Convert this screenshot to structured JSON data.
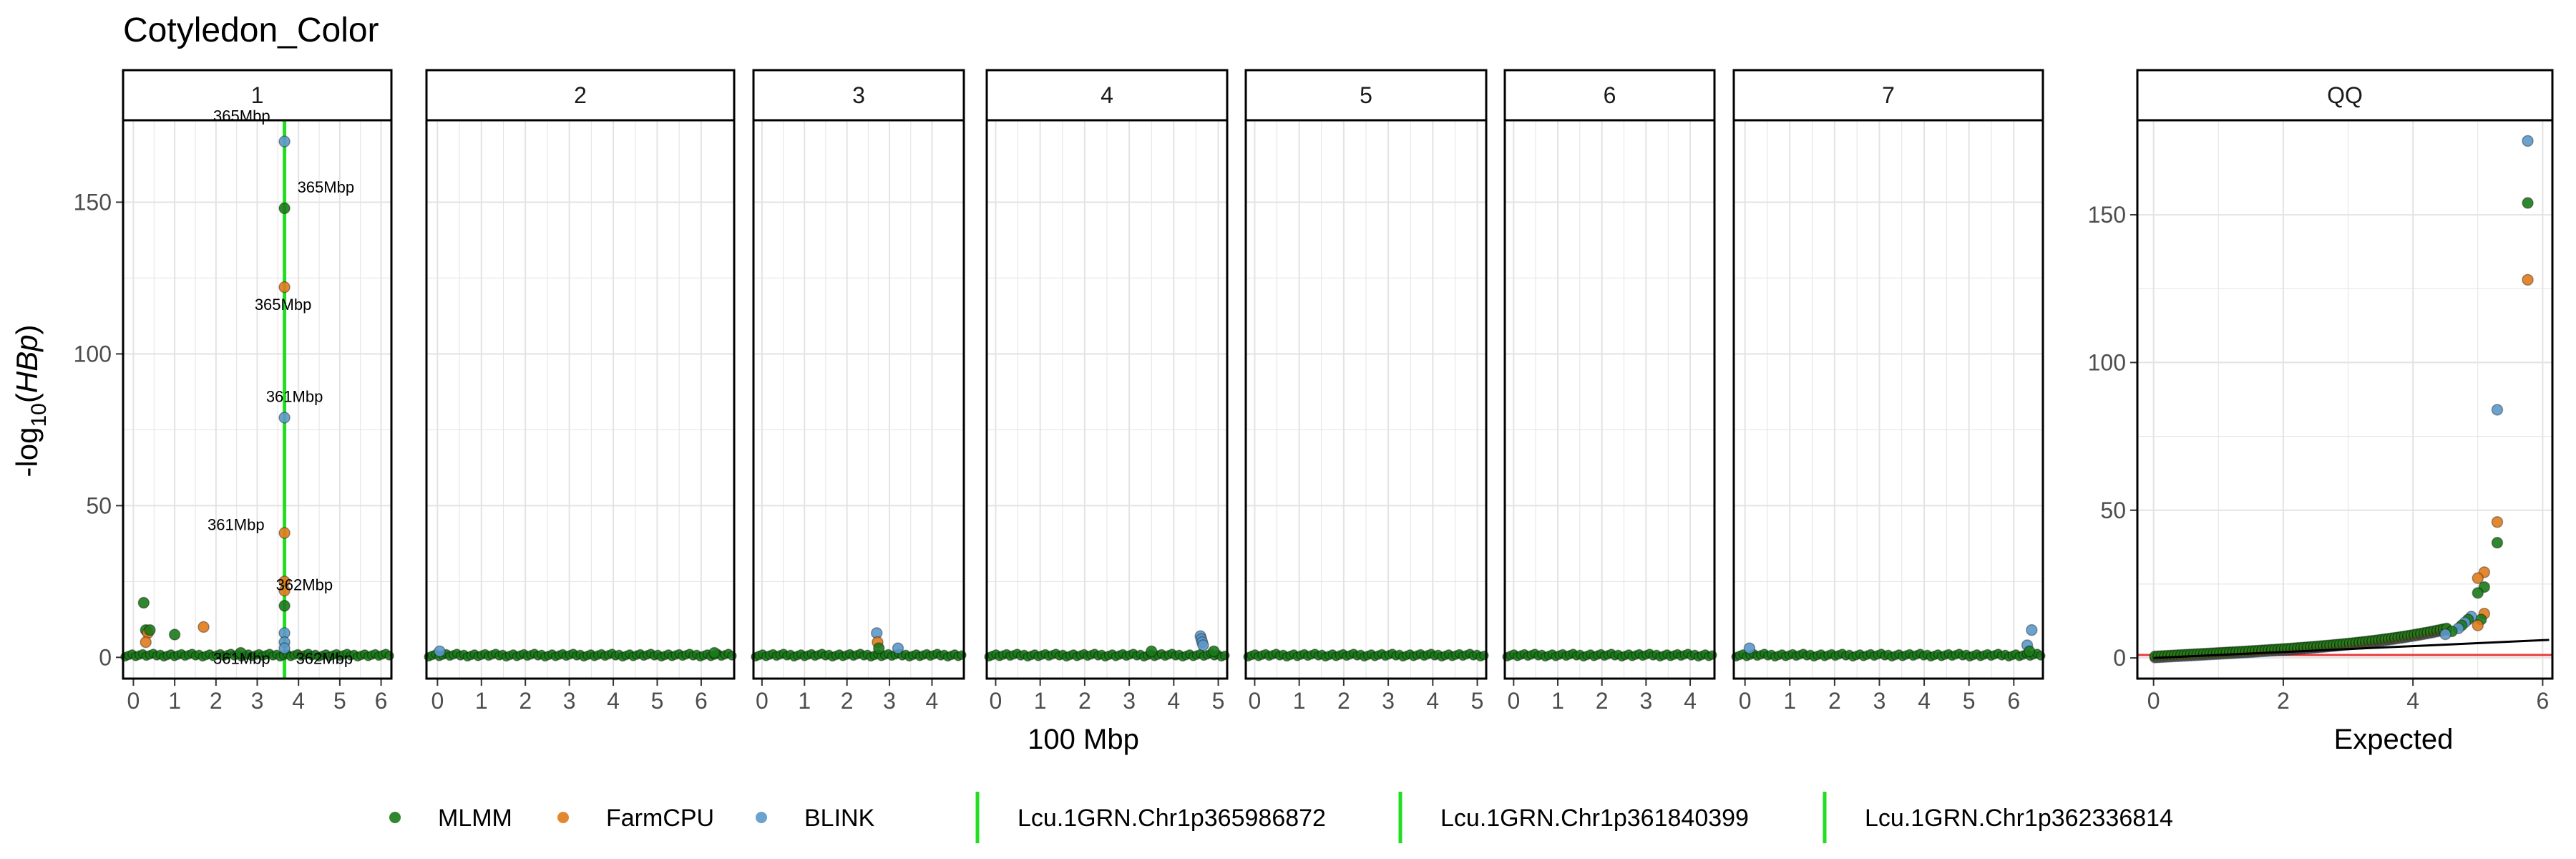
{
  "chart_data": [
    {
      "type": "scatter",
      "title": "Cotyledon_Color",
      "subtitle": "",
      "xlabel": "100 Mbp",
      "ylabel_prefix": "-log",
      "ylabel_sub": "10",
      "ylabel_open": "(",
      "ylabel_var": "HBp",
      "ylabel_close": ")",
      "ylim": [
        -7,
        177
      ],
      "yticks": [
        "0",
        "50",
        "100",
        "150"
      ],
      "threshold_y": 0.8,
      "panels": [
        {
          "label": "1",
          "xlim": [
            -0.25,
            6.25
          ],
          "xticks": [
            "0",
            "1",
            "2",
            "3",
            "4",
            "5",
            "6"
          ],
          "highlight_x": 3.66,
          "points": [
            {
              "x": 0.25,
              "y": 18,
              "s": "MLMM"
            },
            {
              "x": 0.3,
              "y": 9,
              "s": "MLMM"
            },
            {
              "x": 0.35,
              "y": 8,
              "s": "FarmCPU"
            },
            {
              "x": 0.4,
              "y": 9,
              "s": "MLMM"
            },
            {
              "x": 0.3,
              "y": 5,
              "s": "FarmCPU"
            },
            {
              "x": 1.0,
              "y": 7.5,
              "s": "MLMM"
            },
            {
              "x": 1.7,
              "y": 10,
              "s": "FarmCPU"
            },
            {
              "x": 2.6,
              "y": 1.5,
              "s": "MLMM"
            },
            {
              "x": 3.66,
              "y": 170,
              "s": "BLINK"
            },
            {
              "x": 3.66,
              "y": 148,
              "s": "MLMM"
            },
            {
              "x": 3.66,
              "y": 122,
              "s": "FarmCPU"
            },
            {
              "x": 3.66,
              "y": 79,
              "s": "BLINK"
            },
            {
              "x": 3.66,
              "y": 41,
              "s": "FarmCPU"
            },
            {
              "x": 3.66,
              "y": 25,
              "s": "FarmCPU"
            },
            {
              "x": 3.66,
              "y": 22,
              "s": "FarmCPU"
            },
            {
              "x": 3.66,
              "y": 17,
              "s": "MLMM"
            },
            {
              "x": 3.66,
              "y": 8,
              "s": "BLINK"
            },
            {
              "x": 3.66,
              "y": 5,
              "s": "BLINK"
            },
            {
              "x": 3.66,
              "y": 3,
              "s": "BLINK"
            }
          ],
          "labels": [
            {
              "x": 3.66,
              "y": 170,
              "text": "365Mbp",
              "side": "left"
            },
            {
              "x": 3.66,
              "y": 148,
              "text": "365Mbp",
              "side": "right"
            },
            {
              "x": 3.66,
              "y": 122,
              "text": "365Mbp",
              "side": "below"
            },
            {
              "x": 3.66,
              "y": 79,
              "text": "361Mbp",
              "side": "above"
            },
            {
              "x": 3.66,
              "y": 41,
              "text": "361Mbp",
              "side": "belowleft"
            },
            {
              "x": 3.66,
              "y": 17,
              "text": "362Mbp",
              "side": "belowright"
            },
            {
              "x": 3.66,
              "y": 3,
              "text": "361Mbp",
              "side": "lowleft"
            },
            {
              "x": 3.66,
              "y": 3,
              "text": "362Mbp",
              "side": "lowright"
            }
          ]
        },
        {
          "label": "2",
          "xlim": [
            -0.25,
            6.75
          ],
          "xticks": [
            "0",
            "1",
            "2",
            "3",
            "4",
            "5",
            "6"
          ],
          "points": [
            {
              "x": 0.05,
              "y": 2,
              "s": "BLINK"
            },
            {
              "x": 6.3,
              "y": 1.5,
              "s": "MLMM"
            }
          ],
          "labels": []
        },
        {
          "label": "3",
          "xlim": [
            -0.2,
            4.75
          ],
          "xticks": [
            "0",
            "1",
            "2",
            "3",
            "4"
          ],
          "points": [
            {
              "x": 2.7,
              "y": 8,
              "s": "BLINK"
            },
            {
              "x": 2.72,
              "y": 5,
              "s": "FarmCPU"
            },
            {
              "x": 2.75,
              "y": 3,
              "s": "MLMM"
            },
            {
              "x": 3.2,
              "y": 3,
              "s": "BLINK"
            }
          ],
          "labels": []
        },
        {
          "label": "4",
          "xlim": [
            -0.2,
            5.2
          ],
          "xticks": [
            "0",
            "1",
            "2",
            "3",
            "4",
            "5"
          ],
          "points": [
            {
              "x": 4.6,
              "y": 7,
              "s": "BLINK"
            },
            {
              "x": 4.62,
              "y": 6,
              "s": "BLINK"
            },
            {
              "x": 4.64,
              "y": 5,
              "s": "BLINK"
            },
            {
              "x": 4.66,
              "y": 4,
              "s": "BLINK"
            },
            {
              "x": 3.5,
              "y": 2,
              "s": "MLMM"
            },
            {
              "x": 4.9,
              "y": 2,
              "s": "MLMM"
            }
          ],
          "labels": []
        },
        {
          "label": "5",
          "xlim": [
            -0.2,
            5.2
          ],
          "xticks": [
            "0",
            "1",
            "2",
            "3",
            "4",
            "5"
          ],
          "points": [],
          "labels": []
        },
        {
          "label": "6",
          "xlim": [
            -0.2,
            4.55
          ],
          "xticks": [
            "0",
            "1",
            "2",
            "3",
            "4"
          ],
          "points": [],
          "labels": []
        },
        {
          "label": "7",
          "xlim": [
            -0.25,
            6.65
          ],
          "xticks": [
            "0",
            "1",
            "2",
            "3",
            "4",
            "5",
            "6"
          ],
          "points": [
            {
              "x": 0.1,
              "y": 3,
              "s": "BLINK"
            },
            {
              "x": 6.4,
              "y": 9,
              "s": "BLINK"
            },
            {
              "x": 6.3,
              "y": 4,
              "s": "BLINK"
            },
            {
              "x": 6.35,
              "y": 2,
              "s": "MLMM"
            }
          ],
          "labels": []
        }
      ]
    },
    {
      "type": "scatter",
      "title": "QQ",
      "xlabel": "Expected",
      "xlim": [
        -0.25,
        6.15
      ],
      "ylim": [
        -7,
        182
      ],
      "xticks": [
        "0",
        "2",
        "4",
        "6"
      ],
      "yticks": [
        "0",
        "50",
        "100",
        "150"
      ],
      "threshold_y": 1,
      "diagonal": [
        [
          0,
          0
        ],
        [
          6.1,
          6.1
        ]
      ],
      "points": [
        {
          "x": 5.77,
          "y": 175,
          "s": "BLINK"
        },
        {
          "x": 5.77,
          "y": 154,
          "s": "MLMM"
        },
        {
          "x": 5.77,
          "y": 128,
          "s": "FarmCPU"
        },
        {
          "x": 5.3,
          "y": 84,
          "s": "BLINK"
        },
        {
          "x": 5.3,
          "y": 46,
          "s": "FarmCPU"
        },
        {
          "x": 5.3,
          "y": 39,
          "s": "MLMM"
        },
        {
          "x": 5.1,
          "y": 29,
          "s": "FarmCPU"
        },
        {
          "x": 5.0,
          "y": 27,
          "s": "FarmCPU"
        },
        {
          "x": 5.1,
          "y": 24,
          "s": "MLMM"
        },
        {
          "x": 5.0,
          "y": 22,
          "s": "MLMM"
        },
        {
          "x": 5.1,
          "y": 15,
          "s": "FarmCPU"
        },
        {
          "x": 5.05,
          "y": 13,
          "s": "MLMM"
        },
        {
          "x": 5.0,
          "y": 11,
          "s": "FarmCPU"
        },
        {
          "x": 4.9,
          "y": 14,
          "s": "BLINK"
        },
        {
          "x": 4.85,
          "y": 13,
          "s": "MLMM"
        },
        {
          "x": 4.8,
          "y": 12,
          "s": "BLINK"
        },
        {
          "x": 4.75,
          "y": 11,
          "s": "MLMM"
        },
        {
          "x": 4.7,
          "y": 10,
          "s": "BLINK"
        },
        {
          "x": 4.6,
          "y": 9,
          "s": "MLMM"
        },
        {
          "x": 4.5,
          "y": 8,
          "s": "BLINK"
        }
      ]
    }
  ],
  "legend": {
    "series": [
      {
        "name": "MLMM",
        "color": "#1a7a1a"
      },
      {
        "name": "FarmCPU",
        "color": "#e07b1c"
      },
      {
        "name": "BLINK",
        "color": "#5b98c9"
      }
    ],
    "lines": [
      {
        "name": "Lcu.1GRN.Chr1p365986872",
        "color": "#22dd22"
      },
      {
        "name": "Lcu.1GRN.Chr1p361840399",
        "color": "#22dd22"
      },
      {
        "name": "Lcu.1GRN.Chr1p362336814",
        "color": "#22dd22"
      }
    ]
  },
  "colors": {
    "MLMM": "#1a7a1a",
    "FarmCPU": "#e07b1c",
    "BLINK": "#5b98c9",
    "highlight": "#22dd22",
    "threshold": "#e83a3a",
    "grid": "#e3e3e3"
  }
}
